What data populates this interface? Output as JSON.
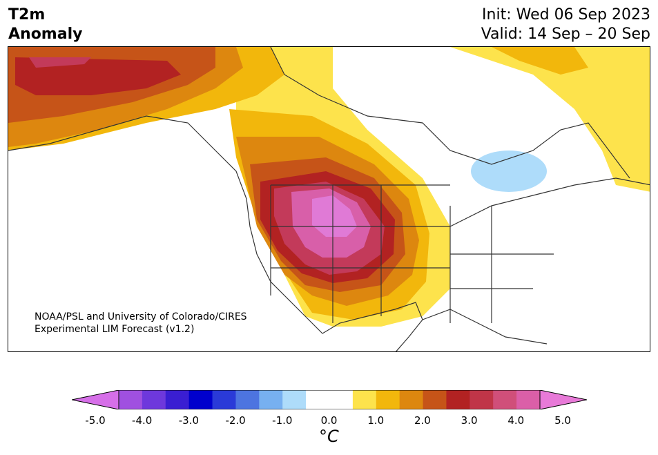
{
  "header": {
    "title_line1": "T2m",
    "title_line2": "Anomaly",
    "init": "Init: Wed 06 Sep 2023",
    "valid": "Valid: 14 Sep – 20 Sep"
  },
  "credit": {
    "line1": "NOAA/PSL and University of Colorado/CIRES",
    "line2": "Experimental LIM Forecast (v1.2)"
  },
  "colorbar": {
    "ticks": [
      "-5.0",
      "-4.0",
      "-3.0",
      "-2.0",
      "-1.0",
      "0.0",
      "1.0",
      "2.0",
      "3.0",
      "4.0",
      "5.0"
    ],
    "unit": "°C",
    "colors": [
      "#d66fe8",
      "#a050e0",
      "#6e38dc",
      "#3a1ed2",
      "#0000cd",
      "#2a3ad8",
      "#4d74e0",
      "#77b0f0",
      "#aedcfa",
      "#ffffff",
      "#ffffff",
      "#fde34c",
      "#f2b70c",
      "#dd870f",
      "#c65418",
      "#b22222",
      "#c03548",
      "#d04f7a",
      "#db5fa8",
      "#e87ad8"
    ]
  },
  "map": {
    "region": "North America",
    "anomaly_levels": {
      "deep_pink_center": "#e07ad6",
      "pink": "#d85fa9",
      "rose": "#c33a5a",
      "red": "#b22222",
      "dark_orange": "#c65418",
      "orange": "#dd870f",
      "gold": "#f2b70c",
      "yellow": "#fde34c",
      "light_blue": "#aedcfa"
    }
  }
}
